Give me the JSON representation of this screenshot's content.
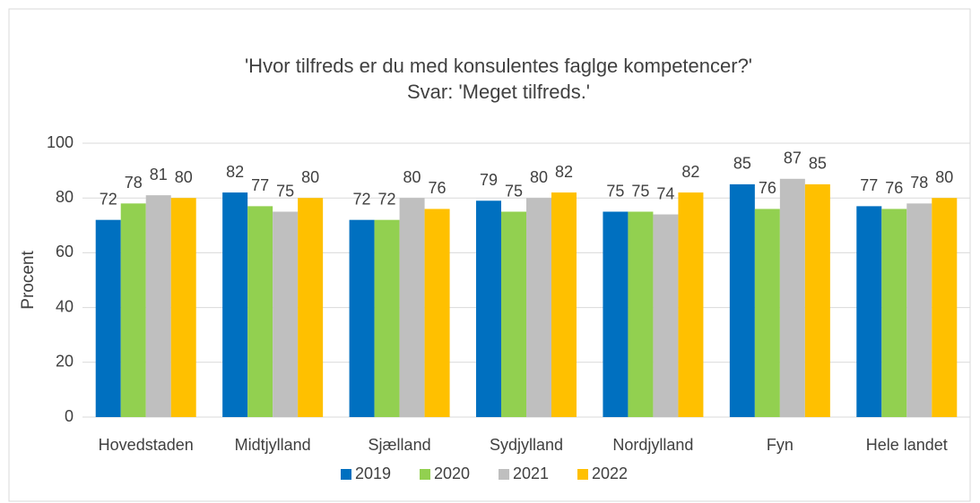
{
  "chart_data": {
    "type": "bar",
    "title": "'Hvor tilfreds er du med konsulentes faglge kompetencer?'",
    "subtitle": "Svar: 'Meget tilfreds.'",
    "y_label": "Procent",
    "categories": [
      "Hovedstaden",
      "Midtjylland",
      "Sjælland",
      "Sydjylland",
      "Nordjylland",
      "Fyn",
      "Hele landet"
    ],
    "series": [
      {
        "name": "2019",
        "color": "#0070c0",
        "values": [
          72,
          82,
          72,
          79,
          75,
          85,
          77
        ]
      },
      {
        "name": "2020",
        "color": "#92d050",
        "values": [
          78,
          77,
          72,
          75,
          75,
          76,
          76
        ]
      },
      {
        "name": "2021",
        "color": "#bfbfbf",
        "values": [
          81,
          75,
          80,
          80,
          74,
          87,
          78
        ]
      },
      {
        "name": "2022",
        "color": "#ffc000",
        "values": [
          80,
          80,
          76,
          82,
          82,
          85,
          80
        ]
      }
    ],
    "ylim": [
      0,
      100
    ],
    "yticks": [
      0,
      20,
      40,
      60,
      80,
      100
    ],
    "grid": true,
    "legend": "bottom"
  }
}
